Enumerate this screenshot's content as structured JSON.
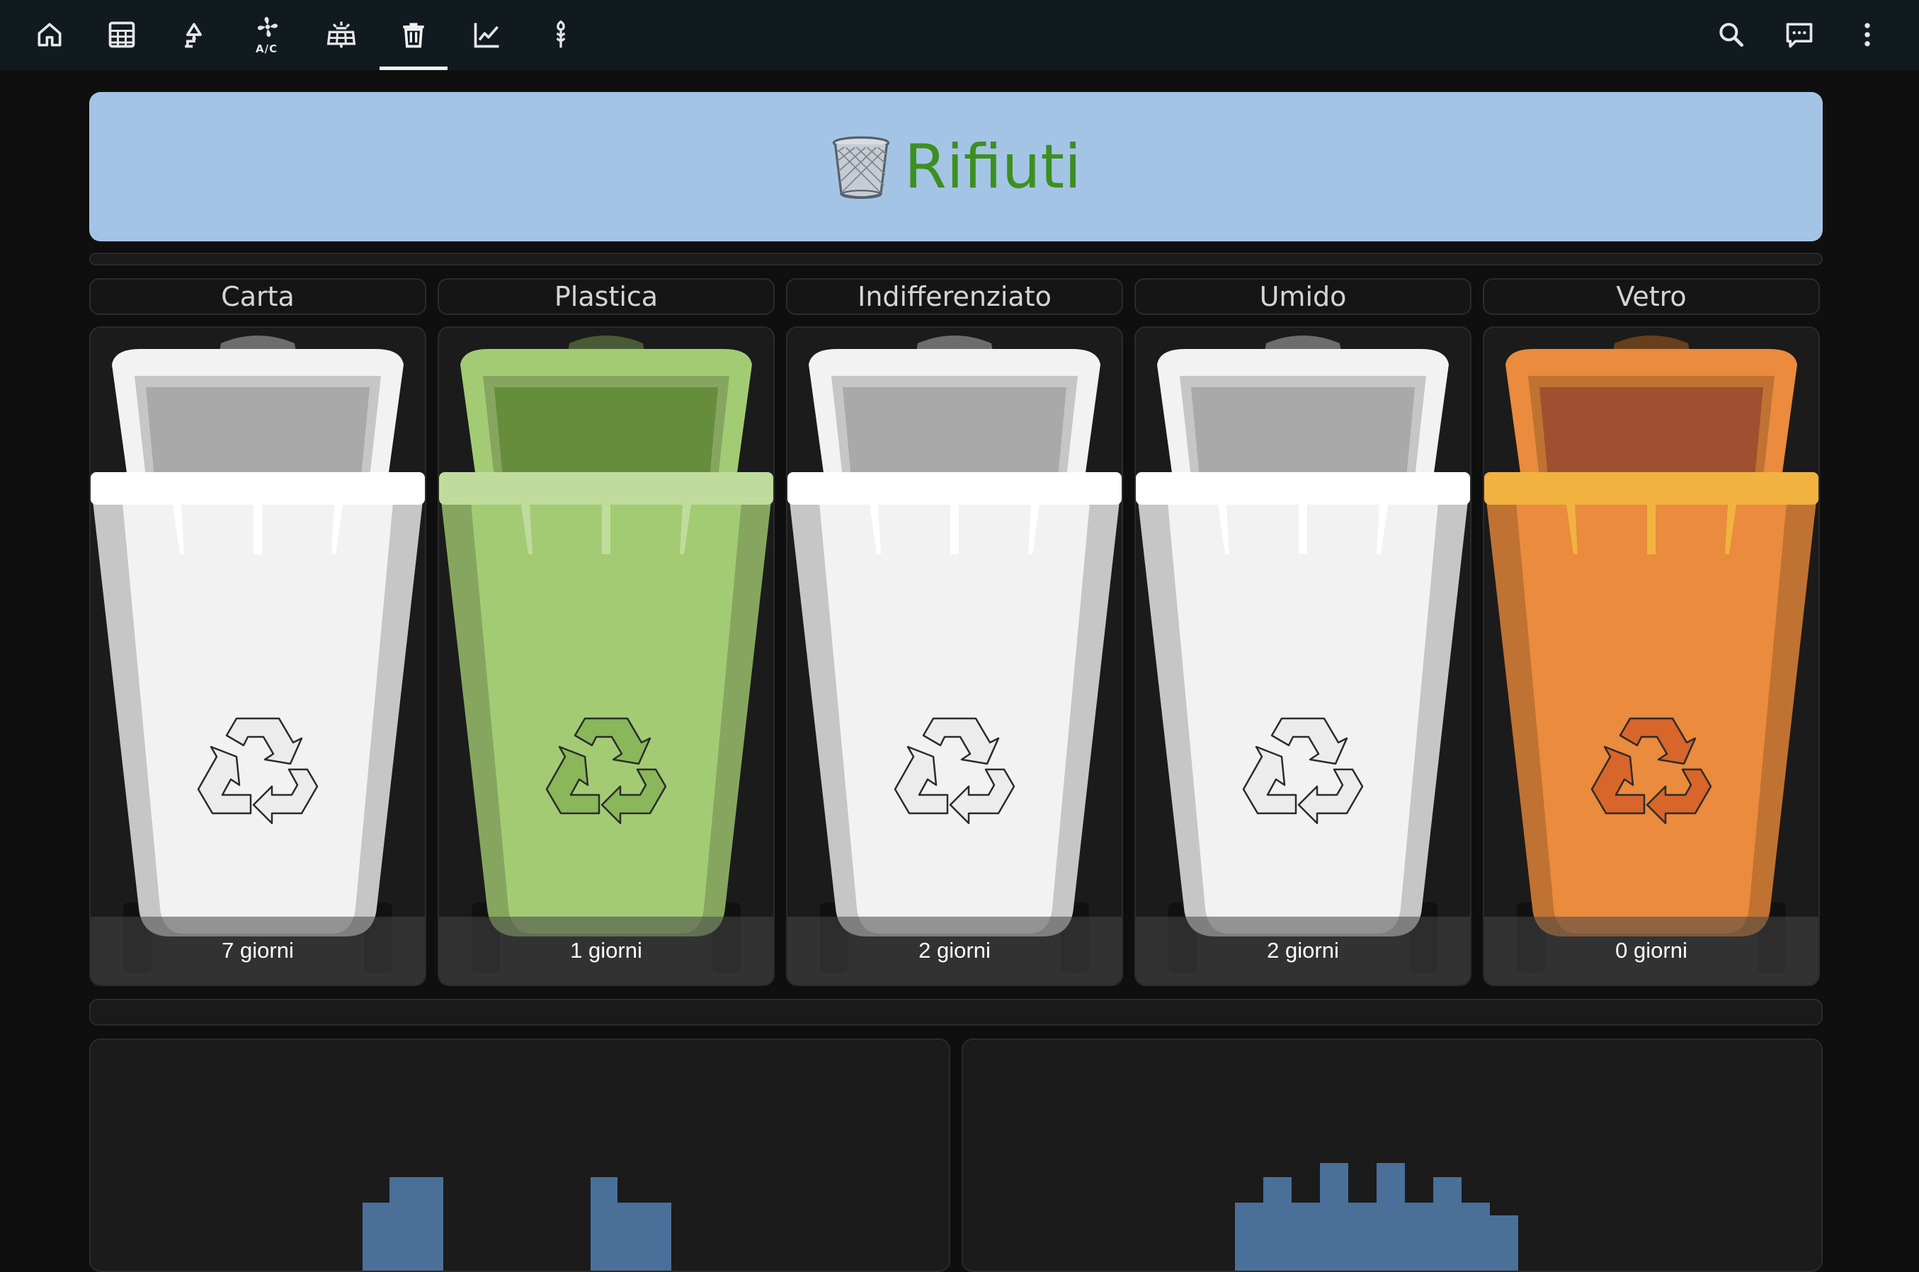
{
  "topbar": {
    "nav": [
      {
        "icon": "home-icon"
      },
      {
        "icon": "calculator-icon"
      },
      {
        "icon": "lamp-icon"
      },
      {
        "icon": "air-conditioner-icon",
        "label": "A/C"
      },
      {
        "icon": "solar-panel-icon"
      },
      {
        "icon": "trash-can-icon",
        "active": true
      },
      {
        "icon": "chart-line-icon"
      },
      {
        "icon": "plant-icon"
      }
    ],
    "actions": [
      {
        "icon": "search-icon"
      },
      {
        "icon": "chat-icon"
      },
      {
        "icon": "more-vertical-icon"
      }
    ]
  },
  "banner": {
    "icon": "wastebasket-icon",
    "title": "Rifiuti"
  },
  "bins": [
    {
      "label": "Carta",
      "days": "7 giorni",
      "color": "#f2f2f2",
      "inner": "#a9a9a9",
      "rim": "#ffffff",
      "symbol": "#ececec"
    },
    {
      "label": "Plastica",
      "days": "1 giorni",
      "color": "#a3cb74",
      "inner": "#668d3b",
      "rim": "#c0dc9c",
      "symbol": "#8ab75a"
    },
    {
      "label": "Indifferenziato",
      "days": "2 giorni",
      "color": "#f2f2f2",
      "inner": "#a9a9a9",
      "rim": "#ffffff",
      "symbol": "#ececec"
    },
    {
      "label": "Umido",
      "days": "2 giorni",
      "color": "#f2f2f2",
      "inner": "#a9a9a9",
      "rim": "#ffffff",
      "symbol": "#ececec"
    },
    {
      "label": "Vetro",
      "days": "0 giorni",
      "color": "#ea8b3d",
      "inner": "#a05030",
      "rim": "#f2b240",
      "symbol": "#d8652a"
    }
  ],
  "colors": {
    "bar": "#4a6f99",
    "banner_bg": "#a4c4e6",
    "banner_text": "#3d8f20"
  }
}
